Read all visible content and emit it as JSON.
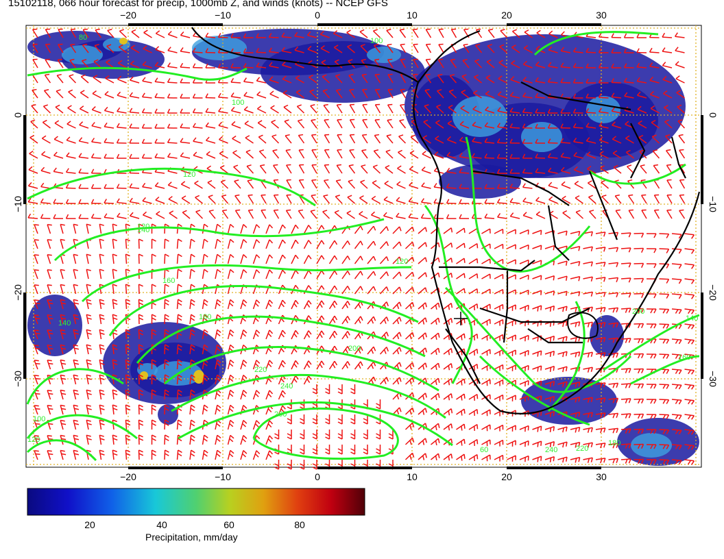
{
  "title": "15102118, 066 hour forecast for precip, 1000mb Z, and winds (knots) -- NCEP GFS",
  "lon_ticks": [
    "−20",
    "−10",
    "0",
    "10",
    "20",
    "30"
  ],
  "lat_ticks": [
    "0",
    "−10",
    "−20",
    "−30"
  ],
  "contour_labels": [
    "100",
    "120",
    "120",
    "140",
    "140",
    "160",
    "180",
    "200",
    "220",
    "240",
    "260",
    "80",
    "100",
    "120",
    "140",
    "160",
    "180",
    "200",
    "220",
    "240",
    "60",
    "100",
    "120"
  ],
  "colorbar": {
    "ticks": [
      "20",
      "40",
      "60",
      "80"
    ],
    "label": "Precipitation, mm/day"
  },
  "colors": {
    "precip_low": "#1a1aa0",
    "precip_mid": "#3ea0e0",
    "contour": "#22ee22",
    "wind_barb": "#ee1111",
    "coast": "#000000",
    "grid": "#e0b020"
  }
}
